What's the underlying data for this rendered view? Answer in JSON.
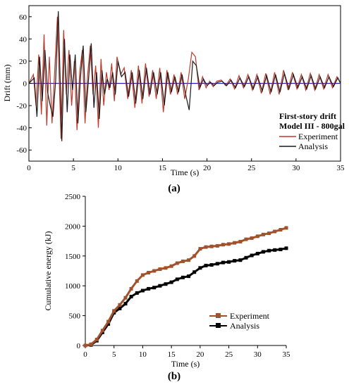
{
  "chart_data": [
    {
      "type": "line",
      "panel_label": "(a)",
      "xlabel": "Time (s)",
      "ylabel": "Drift (mm)",
      "xlim": [
        0,
        35
      ],
      "ylim": [
        -70,
        70
      ],
      "x_ticks": [
        0,
        5,
        10,
        15,
        20,
        25,
        30,
        35
      ],
      "y_ticks": [
        60,
        40,
        20,
        0,
        -20,
        -40,
        -60
      ],
      "grid": false,
      "legend_position": "bottom-right",
      "annotation": [
        "First-story drift",
        "Model III - 800gal"
      ],
      "zero_line_color": "#2020c0",
      "series": [
        {
          "name": "Experiment",
          "color": "#c0392b",
          "x": [
            0,
            0.5,
            0.8,
            1.1,
            1.4,
            1.7,
            2.0,
            2.3,
            2.6,
            2.9,
            3.2,
            3.6,
            3.9,
            4.2,
            4.5,
            4.8,
            5.1,
            5.4,
            5.7,
            6.0,
            6.3,
            6.6,
            6.9,
            7.2,
            7.5,
            7.8,
            8.1,
            8.4,
            8.7,
            9.0,
            9.3,
            9.6,
            9.9,
            10.3,
            10.7,
            11.1,
            11.5,
            11.9,
            12.3,
            12.7,
            13.1,
            13.5,
            13.9,
            14.3,
            14.7,
            15.1,
            15.5,
            15.9,
            16.3,
            16.7,
            17.1,
            17.5,
            17.9,
            18.3,
            18.7,
            19.1,
            19.5,
            19.9,
            20.3,
            20.7,
            21.1,
            21.6,
            22.1,
            22.6,
            23.1,
            23.6,
            24.1,
            24.6,
            25.1,
            25.6,
            26.1,
            26.6,
            27.1,
            27.6,
            28.1,
            28.6,
            29.1,
            29.6,
            30.1,
            30.6,
            31.1,
            31.6,
            32.1,
            32.6,
            33.1,
            33.6,
            34.1,
            34.6,
            35
          ],
          "y": [
            0,
            8,
            -20,
            26,
            -28,
            44,
            -38,
            24,
            -36,
            12,
            60,
            -50,
            48,
            -10,
            30,
            -20,
            20,
            -42,
            10,
            30,
            -36,
            8,
            34,
            -10,
            16,
            -40,
            22,
            -20,
            10,
            -6,
            18,
            -16,
            24,
            8,
            14,
            -14,
            12,
            -22,
            16,
            -18,
            18,
            -12,
            12,
            -14,
            14,
            -26,
            12,
            -10,
            8,
            -10,
            10,
            -14,
            4,
            28,
            24,
            -6,
            6,
            -4,
            2,
            -3,
            2,
            3,
            -2,
            4,
            -5,
            7,
            -4,
            8,
            -6,
            8,
            -9,
            9,
            -10,
            10,
            -10,
            12,
            -6,
            10,
            -5,
            8,
            -6,
            9,
            -6,
            8,
            -5,
            8,
            -4,
            6,
            0
          ]
        },
        {
          "name": "Analysis",
          "color": "#1a1a1a",
          "x": [
            0,
            0.6,
            0.9,
            1.2,
            1.5,
            1.8,
            2.1,
            2.4,
            2.7,
            3.0,
            3.3,
            3.7,
            4.0,
            4.3,
            4.6,
            4.9,
            5.2,
            5.5,
            5.8,
            6.1,
            6.4,
            6.7,
            7.0,
            7.3,
            7.6,
            7.9,
            8.2,
            8.5,
            8.8,
            9.1,
            9.4,
            9.7,
            10.0,
            10.4,
            10.8,
            11.2,
            11.6,
            12.0,
            12.4,
            12.8,
            13.2,
            13.6,
            14.0,
            14.4,
            14.8,
            15.2,
            15.6,
            16.0,
            16.4,
            16.8,
            17.2,
            17.6,
            18.0,
            18.4,
            18.8,
            19.2,
            19.6,
            20.0,
            20.4,
            20.8,
            21.2,
            21.7,
            22.2,
            22.7,
            23.2,
            23.7,
            24.2,
            24.7,
            25.2,
            25.7,
            26.2,
            26.7,
            27.2,
            27.7,
            28.2,
            28.7,
            29.2,
            29.7,
            30.2,
            30.7,
            31.2,
            31.7,
            32.2,
            32.7,
            33.2,
            33.7,
            34.2,
            34.7,
            35
          ],
          "y": [
            0,
            5,
            -30,
            24,
            -16,
            30,
            -8,
            -20,
            -30,
            2,
            65,
            -52,
            40,
            -26,
            26,
            -6,
            26,
            -36,
            6,
            34,
            -26,
            4,
            36,
            -22,
            10,
            -32,
            12,
            -10,
            4,
            -4,
            10,
            -10,
            20,
            6,
            10,
            -12,
            10,
            -18,
            12,
            -14,
            14,
            -10,
            10,
            -10,
            10,
            -20,
            10,
            -8,
            6,
            -8,
            8,
            -10,
            -24,
            20,
            16,
            -4,
            4,
            -2,
            1,
            -2,
            1,
            2,
            -2,
            3,
            -4,
            5,
            -3,
            6,
            -5,
            6,
            -7,
            7,
            -8,
            8,
            -8,
            9,
            -5,
            8,
            -4,
            6,
            -5,
            7,
            -5,
            6,
            -4,
            6,
            -3,
            5,
            0
          ]
        }
      ]
    },
    {
      "type": "line",
      "panel_label": "(b)",
      "xlabel": "Time (s)",
      "ylabel": "Cumulative energy (kJ)",
      "xlim": [
        0,
        35
      ],
      "ylim": [
        0,
        2500
      ],
      "x_ticks": [
        0,
        5,
        10,
        15,
        20,
        25,
        30,
        35
      ],
      "y_ticks": [
        0,
        500,
        1000,
        1500,
        2000,
        2500
      ],
      "grid": false,
      "legend_position": "bottom-right",
      "series": [
        {
          "name": "Experiment",
          "color": "#a0522d",
          "marker": "square",
          "x": [
            0,
            1,
            2,
            3,
            4,
            5,
            6,
            7,
            8,
            9,
            10,
            11,
            12,
            13,
            14,
            15,
            16,
            17,
            18,
            19,
            20,
            21,
            22,
            23,
            24,
            25,
            26,
            27,
            28,
            29,
            30,
            31,
            32,
            33,
            34,
            35
          ],
          "y": [
            0,
            20,
            100,
            250,
            400,
            580,
            680,
            800,
            950,
            1080,
            1180,
            1220,
            1250,
            1280,
            1300,
            1330,
            1380,
            1410,
            1430,
            1500,
            1620,
            1650,
            1660,
            1670,
            1690,
            1700,
            1720,
            1740,
            1780,
            1800,
            1830,
            1860,
            1880,
            1910,
            1940,
            1970
          ]
        },
        {
          "name": "Analysis",
          "color": "#000000",
          "marker": "square",
          "x": [
            0,
            1,
            2,
            3,
            4,
            5,
            6,
            7,
            8,
            9,
            10,
            11,
            12,
            13,
            14,
            15,
            16,
            17,
            18,
            19,
            20,
            21,
            22,
            23,
            24,
            25,
            26,
            27,
            28,
            29,
            30,
            31,
            32,
            33,
            34,
            35
          ],
          "y": [
            0,
            10,
            80,
            220,
            360,
            550,
            620,
            700,
            820,
            880,
            920,
            950,
            970,
            1000,
            1030,
            1060,
            1110,
            1140,
            1160,
            1230,
            1300,
            1340,
            1350,
            1370,
            1390,
            1400,
            1420,
            1430,
            1470,
            1510,
            1540,
            1570,
            1590,
            1600,
            1610,
            1630
          ]
        }
      ]
    }
  ]
}
